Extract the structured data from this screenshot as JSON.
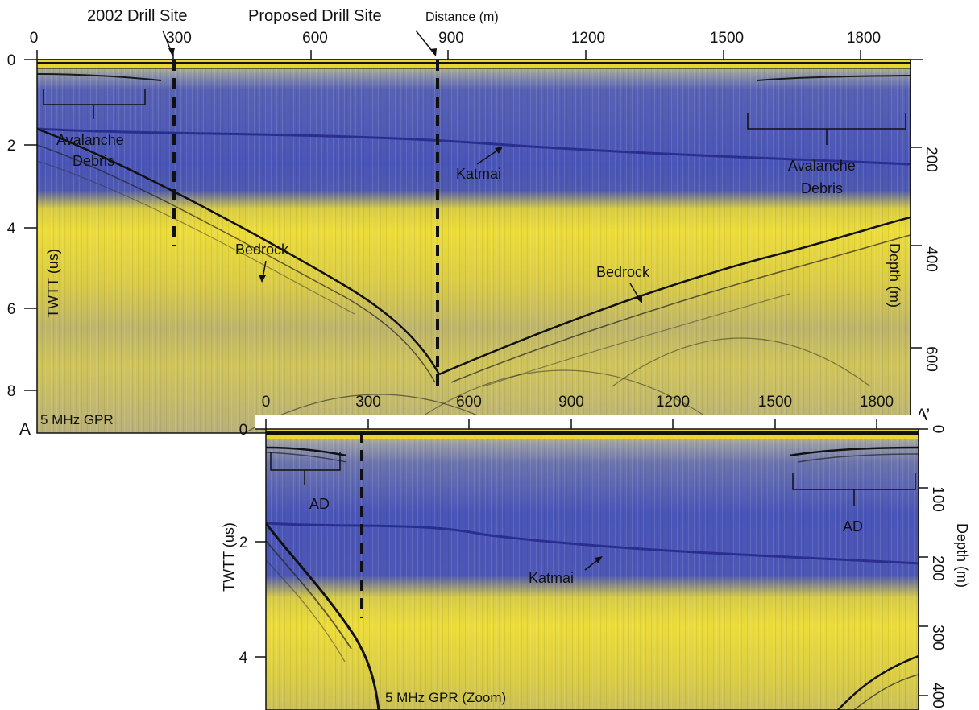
{
  "colors": {
    "yellow": "#ecdc3a",
    "blue": "#4a55b8",
    "grey": "#a8a98a"
  },
  "panel_main": {
    "distance_ticks": [
      "0",
      "300",
      "600",
      "900",
      "1200",
      "1500",
      "1800"
    ],
    "twtt_ticks": [
      "0",
      "2",
      "4",
      "6",
      "8"
    ],
    "depth_ticks": [
      "200",
      "400",
      "600"
    ],
    "distance_label": "Distance (m)",
    "twtt_label": "TWTT (us)",
    "depth_label": "Depth (m)",
    "caption": "5 MHz GPR",
    "site_2002": "2002 Drill Site",
    "site_proposed": "Proposed Drill Site",
    "avalanche_left_1": "Avalanche",
    "avalanche_left_2": "Debris",
    "avalanche_right_1": "Avalanche",
    "avalanche_right_2": "Debris",
    "katmai": "Katmai",
    "bedrock_left": "Bedrock",
    "bedrock_right": "Bedrock",
    "corner_a": "A",
    "corner_a_prime": "A’"
  },
  "panel_zoom": {
    "distance_ticks": [
      "0",
      "300",
      "600",
      "900",
      "1200",
      "1500",
      "1800"
    ],
    "twtt_ticks": [
      "0",
      "2",
      "4"
    ],
    "depth_ticks": [
      "0",
      "100",
      "200",
      "300",
      "400"
    ],
    "twtt_label": "TWTT (us)",
    "depth_label": "Depth (m)",
    "caption": "5 MHz GPR (Zoom)",
    "ad_left": "AD",
    "ad_right": "AD",
    "katmai": "Katmai"
  }
}
